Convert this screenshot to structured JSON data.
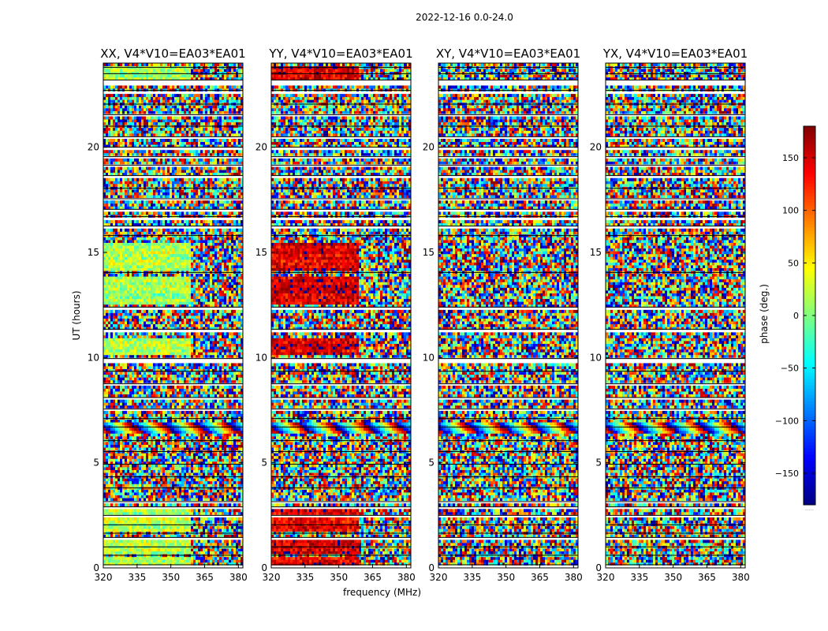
{
  "suptitle": "2022-12-16 0.0-24.0",
  "chart_data": {
    "type": "heatmap",
    "title": "2022-12-16 0.0-24.0",
    "xlabel": "frequency (MHz)",
    "ylabel": "UT (hours)",
    "xlim": [
      320,
      382
    ],
    "ylim": [
      0,
      24
    ],
    "xticks": [
      320,
      335,
      350,
      365,
      380
    ],
    "yticks": [
      0,
      5,
      10,
      15,
      20
    ],
    "panels": [
      {
        "title": "XX, V4*V10=EA03*EA01",
        "polarization": "XX",
        "show_ylabel": true,
        "show_xlabel": false,
        "coherent_phase_deg": 15
      },
      {
        "title": "YY, V4*V10=EA03*EA01",
        "polarization": "YY",
        "show_ylabel": false,
        "show_xlabel": true,
        "coherent_phase_deg": 150
      },
      {
        "title": "XY, V4*V10=EA03*EA01",
        "polarization": "XY",
        "show_ylabel": false,
        "show_xlabel": false,
        "coherent_phase_deg": null
      },
      {
        "title": "YX, V4*V10=EA03*EA01",
        "polarization": "YX",
        "show_ylabel": false,
        "show_xlabel": false,
        "coherent_phase_deg": null
      }
    ],
    "flagged_hours": [
      [
        0.0,
        0.15
      ],
      [
        0.55,
        0.6
      ],
      [
        0.95,
        1.0
      ],
      [
        1.4,
        1.45
      ],
      [
        1.6,
        1.65
      ],
      [
        2.0,
        2.05
      ],
      [
        2.45,
        2.5
      ],
      [
        2.85,
        2.9
      ],
      [
        3.1,
        3.15
      ],
      [
        3.75,
        3.8
      ],
      [
        4.3,
        4.33
      ],
      [
        4.9,
        4.93
      ],
      [
        5.5,
        5.53
      ],
      [
        6.0,
        6.05
      ],
      [
        6.65,
        6.7
      ],
      [
        7.05,
        7.1
      ],
      [
        7.5,
        7.55
      ],
      [
        8.05,
        8.1
      ],
      [
        8.7,
        8.75
      ],
      [
        9.3,
        9.35
      ],
      [
        9.8,
        9.95
      ],
      [
        11.2,
        11.35
      ],
      [
        12.3,
        12.4
      ],
      [
        14.0,
        14.05
      ],
      [
        15.7,
        15.8
      ],
      [
        16.2,
        16.25
      ],
      [
        16.6,
        16.7
      ],
      [
        17.0,
        17.05
      ],
      [
        17.5,
        17.55
      ],
      [
        18.0,
        18.05
      ],
      [
        18.6,
        18.65
      ],
      [
        19.1,
        19.15
      ],
      [
        19.5,
        19.55
      ],
      [
        19.9,
        20.0
      ],
      [
        20.45,
        20.5
      ],
      [
        20.9,
        21.0
      ],
      [
        21.5,
        21.55
      ],
      [
        22.0,
        22.05
      ],
      [
        22.6,
        22.7
      ],
      [
        22.9,
        23.2
      ],
      [
        23.45,
        23.5
      ],
      [
        23.75,
        23.8
      ]
    ],
    "coherent_hours": [
      [
        0.15,
        0.5
      ],
      [
        0.7,
        1.3
      ],
      [
        1.7,
        2.4
      ],
      [
        2.6,
        2.8
      ],
      [
        10.1,
        11.0
      ],
      [
        12.5,
        13.8
      ],
      [
        14.1,
        15.5
      ],
      [
        23.25,
        23.9
      ]
    ],
    "fringe_hours": [
      [
        6.45,
        7.0
      ]
    ],
    "coherent_freq_max": 359,
    "colorbar": {
      "label": "phase (deg.)",
      "range": [
        -180,
        180
      ],
      "ticks": [
        150,
        100,
        50,
        0,
        -50,
        -100,
        -150
      ],
      "tick_labels": [
        "150",
        "100",
        "50",
        "0",
        "−50",
        "−100",
        "−150"
      ],
      "colormap": "jet",
      "footnote": "....."
    }
  }
}
